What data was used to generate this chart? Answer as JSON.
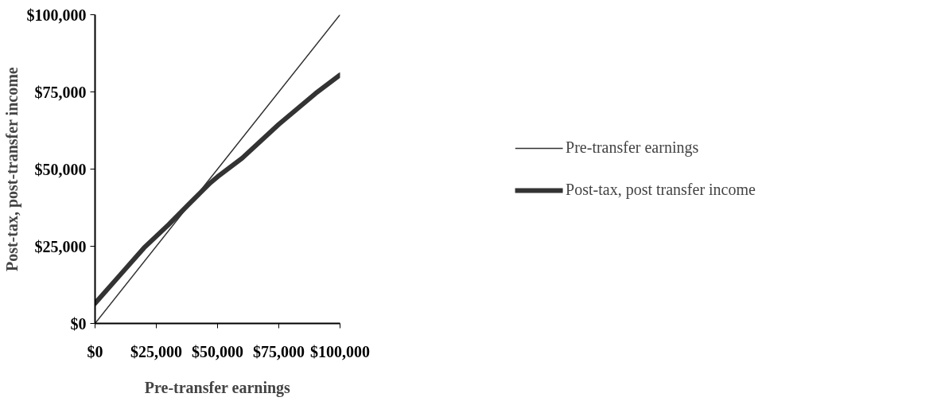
{
  "chart_data": {
    "type": "line",
    "xlabel": "Pre-transfer earnings",
    "ylabel": "Post-tax, post-transfer income",
    "xlim": [
      0,
      100000
    ],
    "ylim": [
      0,
      100000
    ],
    "xticks": [
      {
        "value": 0,
        "label": "$0"
      },
      {
        "value": 25000,
        "label": "$25,000"
      },
      {
        "value": 50000,
        "label": "$50,000"
      },
      {
        "value": 75000,
        "label": "$75,000"
      },
      {
        "value": 100000,
        "label": "$100,000"
      }
    ],
    "yticks": [
      {
        "value": 0,
        "label": "$0"
      },
      {
        "value": 25000,
        "label": "$25,000"
      },
      {
        "value": 50000,
        "label": "$50,000"
      },
      {
        "value": 75000,
        "label": "$75,000"
      },
      {
        "value": 100000,
        "label": "$100,000"
      }
    ],
    "grid": false,
    "legend": "right",
    "series": [
      {
        "name": "Pre-transfer earnings",
        "color": "#333333",
        "x": [
          0,
          50000,
          100000
        ],
        "values": [
          0,
          50000,
          100000
        ]
      },
      {
        "name": "Post-tax, post transfer income",
        "color": "#333333",
        "x": [
          0,
          10000,
          20000,
          30000,
          40000,
          47000,
          50000,
          60000,
          75000,
          90000,
          100000
        ],
        "values": [
          6500,
          15500,
          24500,
          32000,
          40000,
          45500,
          47500,
          53500,
          64500,
          74500,
          80500
        ]
      }
    ]
  }
}
